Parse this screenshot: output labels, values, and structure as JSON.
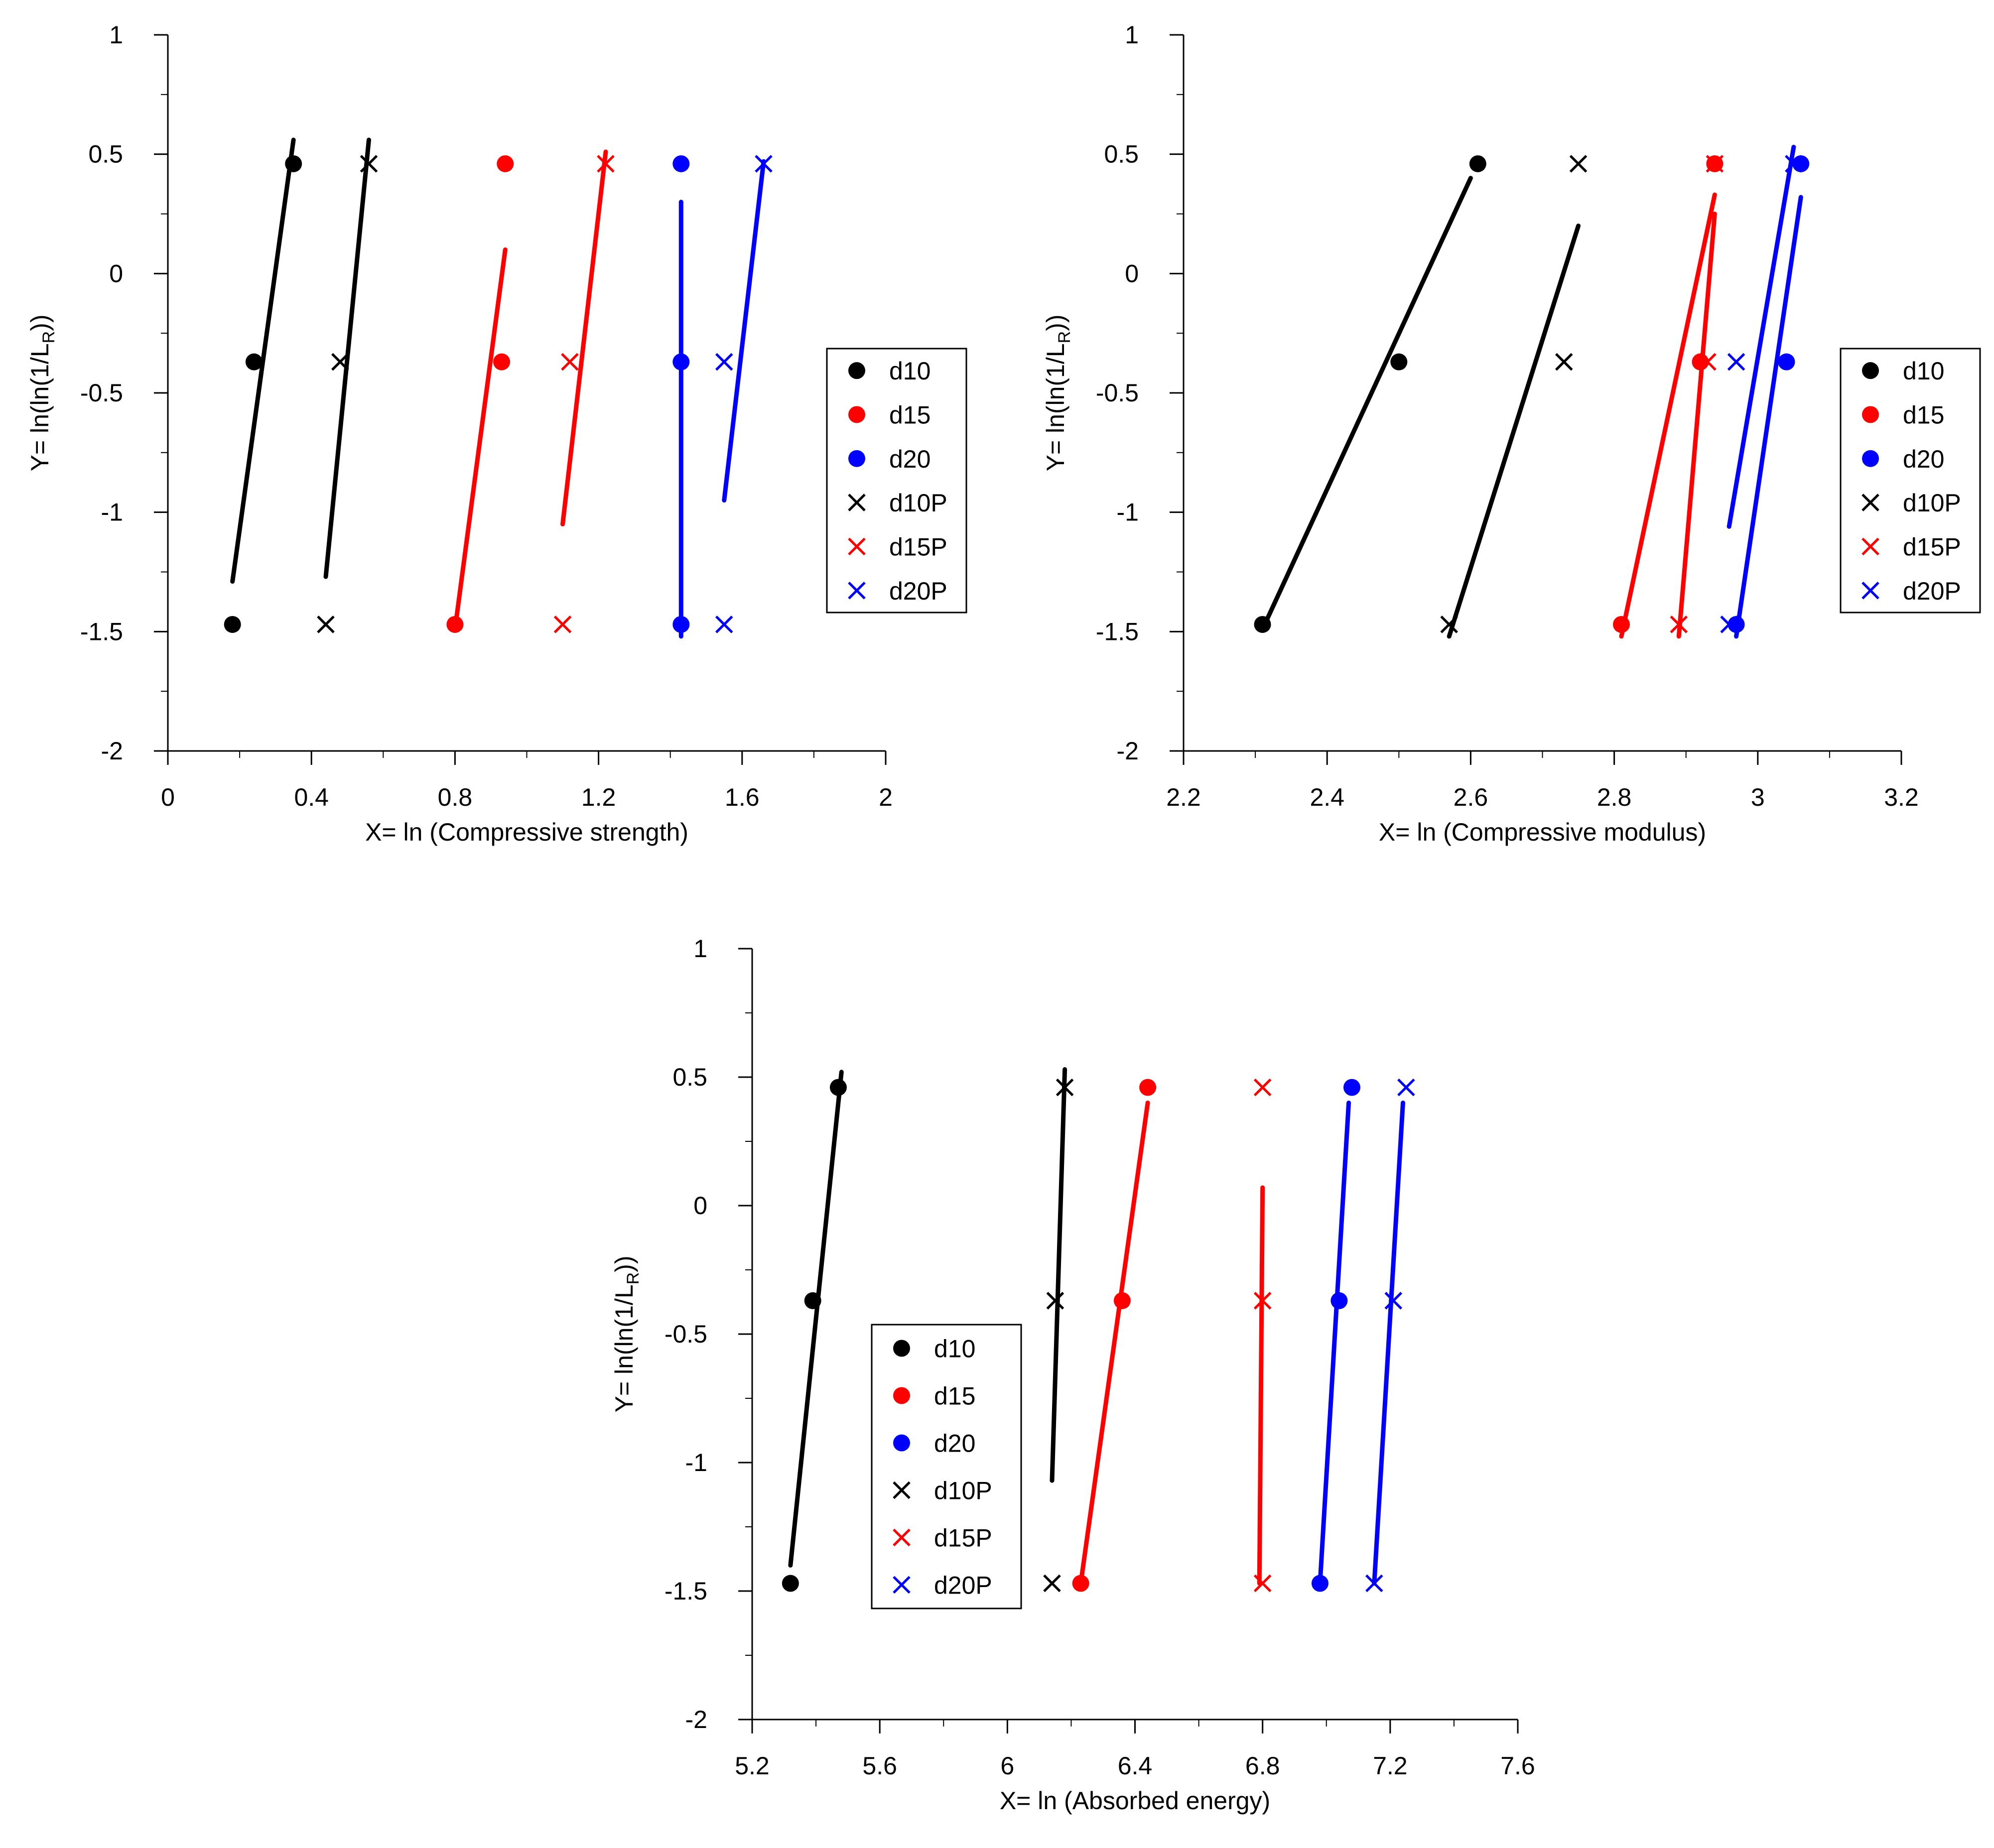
{
  "chart_data": [
    {
      "type": "scatter",
      "xlabel": "X= ln (Compressive strength)",
      "ylabel_main": "Y= ln(ln(1/L",
      "ylabel_sub": "R",
      "ylabel_end": "))",
      "xlim": [
        0,
        2
      ],
      "ylim": [
        -2,
        1
      ],
      "xticks": [
        "0",
        "0.4",
        "0.8",
        "1.2",
        "1.6",
        "2"
      ],
      "xtick_values": [
        0,
        0.4,
        0.8,
        1.2,
        1.6,
        2
      ],
      "x_minor_step": 0.2,
      "yticks": [
        "-2",
        "-1.5",
        "-1",
        "-0.5",
        "0",
        "0.5",
        "1"
      ],
      "ytick_values": [
        -2,
        -1.5,
        -1,
        -0.5,
        0,
        0.5,
        1
      ],
      "y_minor_step": 0.25,
      "legend_position": "right",
      "series": [
        {
          "name": "d10",
          "marker": "circle",
          "color": "#000000",
          "points": [
            [
              0.18,
              -1.47
            ],
            [
              0.24,
              -0.37
            ],
            [
              0.35,
              0.46
            ]
          ],
          "fit": [
            [
              0.18,
              -1.29
            ],
            [
              0.35,
              0.56
            ]
          ]
        },
        {
          "name": "d15",
          "marker": "circle",
          "color": "#ff0000",
          "points": [
            [
              0.8,
              -1.47
            ],
            [
              0.93,
              -0.37
            ],
            [
              0.94,
              0.46
            ]
          ],
          "fit": [
            [
              0.8,
              -1.49
            ],
            [
              0.94,
              0.1
            ]
          ]
        },
        {
          "name": "d20",
          "marker": "circle",
          "color": "#0000ff",
          "points": [
            [
              1.43,
              -1.47
            ],
            [
              1.43,
              -0.37
            ],
            [
              1.43,
              0.46
            ]
          ],
          "fit": [
            [
              1.43,
              -1.52
            ],
            [
              1.43,
              0.3
            ]
          ]
        },
        {
          "name": "d10P",
          "marker": "x",
          "color": "#000000",
          "points": [
            [
              0.44,
              -1.47
            ],
            [
              0.48,
              -0.37
            ],
            [
              0.56,
              0.46
            ]
          ],
          "fit": [
            [
              0.44,
              -1.27
            ],
            [
              0.56,
              0.56
            ]
          ]
        },
        {
          "name": "d15P",
          "marker": "x",
          "color": "#ff0000",
          "points": [
            [
              1.1,
              -1.47
            ],
            [
              1.12,
              -0.37
            ],
            [
              1.22,
              0.46
            ]
          ],
          "fit": [
            [
              1.1,
              -1.05
            ],
            [
              1.22,
              0.51
            ]
          ]
        },
        {
          "name": "d20P",
          "marker": "x",
          "color": "#0000ff",
          "points": [
            [
              1.55,
              -1.47
            ],
            [
              1.55,
              -0.37
            ],
            [
              1.66,
              0.46
            ]
          ],
          "fit": [
            [
              1.55,
              -0.95
            ],
            [
              1.66,
              0.47
            ]
          ]
        }
      ]
    },
    {
      "type": "scatter",
      "xlabel": "X= ln (Compressive modulus)",
      "ylabel_main": "Y= ln(ln(1/L",
      "ylabel_sub": "R",
      "ylabel_end": "))",
      "xlim": [
        2.2,
        3.2
      ],
      "ylim": [
        -2,
        1
      ],
      "xticks": [
        "2.2",
        "2.4",
        "2.6",
        "2.8",
        "3",
        "3.2"
      ],
      "xtick_values": [
        2.2,
        2.4,
        2.6,
        2.8,
        3.0,
        3.2
      ],
      "x_minor_step": 0.1,
      "yticks": [
        "-2",
        "-1.5",
        "-1",
        "-0.5",
        "0",
        "0.5",
        "1"
      ],
      "ytick_values": [
        -2,
        -1.5,
        -1,
        -0.5,
        0,
        0.5,
        1
      ],
      "y_minor_step": 0.25,
      "legend_position": "right",
      "series": [
        {
          "name": "d10",
          "marker": "circle",
          "color": "#000000",
          "points": [
            [
              2.31,
              -1.47
            ],
            [
              2.5,
              -0.37
            ],
            [
              2.61,
              0.46
            ]
          ],
          "fit": [
            [
              2.31,
              -1.49
            ],
            [
              2.6,
              0.4
            ]
          ]
        },
        {
          "name": "d15",
          "marker": "circle",
          "color": "#ff0000",
          "points": [
            [
              2.81,
              -1.47
            ],
            [
              2.92,
              -0.37
            ],
            [
              2.94,
              0.46
            ]
          ],
          "fit": [
            [
              2.81,
              -1.52
            ],
            [
              2.94,
              0.33
            ]
          ]
        },
        {
          "name": "d20",
          "marker": "circle",
          "color": "#0000ff",
          "points": [
            [
              2.97,
              -1.47
            ],
            [
              3.04,
              -0.37
            ],
            [
              3.06,
              0.46
            ]
          ],
          "fit": [
            [
              2.97,
              -1.52
            ],
            [
              3.06,
              0.32
            ]
          ]
        },
        {
          "name": "d10P",
          "marker": "x",
          "color": "#000000",
          "points": [
            [
              2.57,
              -1.47
            ],
            [
              2.73,
              -0.37
            ],
            [
              2.75,
              0.46
            ]
          ],
          "fit": [
            [
              2.57,
              -1.52
            ],
            [
              2.75,
              0.2
            ]
          ]
        },
        {
          "name": "d15P",
          "marker": "x",
          "color": "#ff0000",
          "points": [
            [
              2.89,
              -1.47
            ],
            [
              2.93,
              -0.37
            ],
            [
              2.94,
              0.46
            ]
          ],
          "fit": [
            [
              2.89,
              -1.52
            ],
            [
              2.94,
              0.25
            ]
          ]
        },
        {
          "name": "d20P",
          "marker": "x",
          "color": "#0000ff",
          "points": [
            [
              2.96,
              -1.47
            ],
            [
              2.97,
              -0.37
            ],
            [
              3.05,
              0.46
            ]
          ],
          "fit": [
            [
              2.96,
              -1.06
            ],
            [
              3.05,
              0.53
            ]
          ]
        }
      ]
    },
    {
      "type": "scatter",
      "xlabel": "X= ln (Absorbed energy)",
      "ylabel_main": "Y= ln(ln(1/L",
      "ylabel_sub": "R",
      "ylabel_end": "))",
      "xlim": [
        5.2,
        7.6
      ],
      "ylim": [
        -2,
        1
      ],
      "xticks": [
        "5.2",
        "5.6",
        "6",
        "6.4",
        "6.8",
        "7.2",
        "7.6"
      ],
      "xtick_values": [
        5.2,
        5.6,
        6.0,
        6.4,
        6.8,
        7.2,
        7.6
      ],
      "x_minor_step": 0.2,
      "yticks": [
        "-2",
        "-1.5",
        "-1",
        "-0.5",
        "0",
        "0.5",
        "1"
      ],
      "ytick_values": [
        -2,
        -1.5,
        -1,
        -0.5,
        0,
        0.5,
        1
      ],
      "y_minor_step": 0.25,
      "legend_position": "left",
      "series": [
        {
          "name": "d10",
          "marker": "circle",
          "color": "#000000",
          "points": [
            [
              5.32,
              -1.47
            ],
            [
              5.39,
              -0.37
            ],
            [
              5.47,
              0.46
            ]
          ],
          "fit": [
            [
              5.32,
              -1.4
            ],
            [
              5.48,
              0.52
            ]
          ]
        },
        {
          "name": "d15",
          "marker": "circle",
          "color": "#ff0000",
          "points": [
            [
              6.23,
              -1.47
            ],
            [
              6.36,
              -0.37
            ],
            [
              6.44,
              0.46
            ]
          ],
          "fit": [
            [
              6.23,
              -1.47
            ],
            [
              6.44,
              0.4
            ]
          ]
        },
        {
          "name": "d20",
          "marker": "circle",
          "color": "#0000ff",
          "points": [
            [
              6.98,
              -1.47
            ],
            [
              7.04,
              -0.37
            ],
            [
              7.08,
              0.46
            ]
          ],
          "fit": [
            [
              6.98,
              -1.47
            ],
            [
              7.07,
              0.4
            ]
          ]
        },
        {
          "name": "d10P",
          "marker": "x",
          "color": "#000000",
          "points": [
            [
              6.14,
              -1.47
            ],
            [
              6.15,
              -0.37
            ],
            [
              6.18,
              0.46
            ]
          ],
          "fit": [
            [
              6.14,
              -1.07
            ],
            [
              6.18,
              0.53
            ]
          ]
        },
        {
          "name": "d15P",
          "marker": "x",
          "color": "#ff0000",
          "points": [
            [
              6.8,
              -1.47
            ],
            [
              6.8,
              -0.37
            ],
            [
              6.8,
              0.46
            ]
          ],
          "fit": [
            [
              6.79,
              -1.47
            ],
            [
              6.8,
              0.07
            ]
          ]
        },
        {
          "name": "d20P",
          "marker": "x",
          "color": "#0000ff",
          "points": [
            [
              7.15,
              -1.47
            ],
            [
              7.21,
              -0.37
            ],
            [
              7.25,
              0.46
            ]
          ],
          "fit": [
            [
              7.15,
              -1.47
            ],
            [
              7.24,
              0.4
            ]
          ]
        }
      ]
    }
  ]
}
